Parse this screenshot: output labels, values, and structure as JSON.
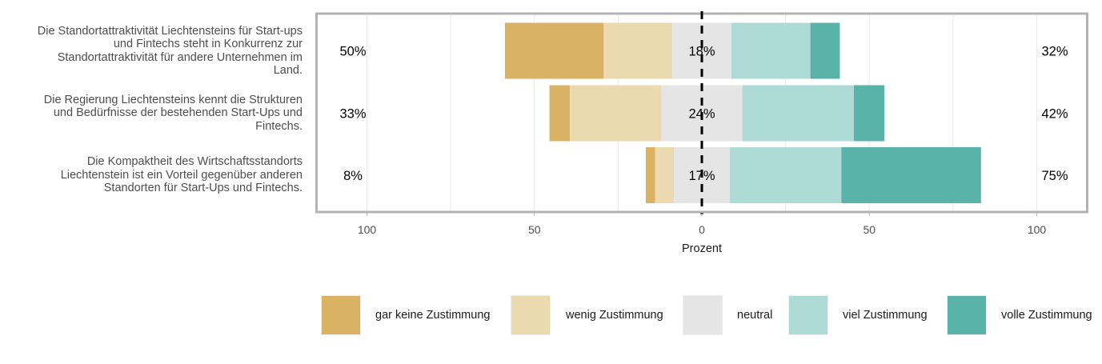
{
  "chart_data": {
    "type": "bar",
    "subtype": "diverging-stacked-likert",
    "xlabel": "Prozent",
    "xlim": [
      -115,
      115
    ],
    "x_ticks": [
      {
        "value": -100,
        "label": "100"
      },
      {
        "value": -50,
        "label": "50"
      },
      {
        "value": 0,
        "label": "0"
      },
      {
        "value": 50,
        "label": "50"
      },
      {
        "value": 100,
        "label": "100"
      }
    ],
    "levels": [
      "gar keine Zustimmung",
      "wenig Zustimmung",
      "neutral",
      "viel Zustimmung",
      "volle Zustimmung"
    ],
    "colors": [
      "#d9b263",
      "#ebdab0",
      "#e5e5e5",
      "#afdbd7",
      "#5ab3a9"
    ],
    "items": [
      {
        "question": "Die Standortattraktivität Liechtensteins für Start-ups und Fintechs steht in Konkurrenz zur Standortattraktivität für andere Unternehmen im Land.",
        "values": [
          29.5,
          20.5,
          17.6,
          23.6,
          8.8
        ],
        "low_label": "50%",
        "neutral_label": "18%",
        "high_label": "32%"
      },
      {
        "question": "Die Regierung Liechtensteins kennt die Strukturen und Bedürfnisse der bestehenden Start-Ups und Fintechs.",
        "values": [
          6.1,
          27.3,
          24.2,
          33.3,
          9.1
        ],
        "low_label": "33%",
        "neutral_label": "24%",
        "high_label": "42%"
      },
      {
        "question": "Die Kompaktheit des Wirtschaftsstandorts Liechtenstein ist ein Vorteil gegenüber anderen Standorten für Start-Ups und Fintechs.",
        "values": [
          2.8,
          5.6,
          16.7,
          33.3,
          41.7
        ],
        "low_label": "8%",
        "neutral_label": "17%",
        "high_label": "75%"
      }
    ]
  }
}
